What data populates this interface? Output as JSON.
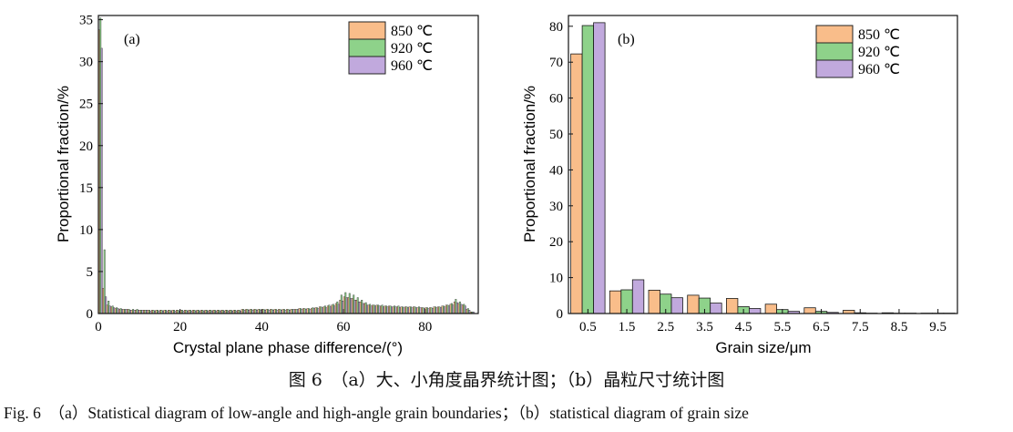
{
  "caption": {
    "cn": "图 6　（a）大、小角度晶界统计图；（b）晶粒尺寸统计图",
    "en": "Fig. 6　（a）Statistical diagram of low-angle and high-angle grain boundaries；（b）statistical diagram of grain size"
  },
  "chart_data": [
    {
      "type": "bar",
      "panel_label": "(a)",
      "xlabel": "Crystal plane phase difference/(°)",
      "ylabel": "Proportional fraction/%",
      "xlim": [
        0,
        93
      ],
      "ylim": [
        0,
        35.5
      ],
      "xticks": [
        0,
        20,
        40,
        60,
        80
      ],
      "yticks": [
        0,
        5,
        10,
        15,
        20,
        25,
        30,
        35
      ],
      "bin_width": 1,
      "x": [
        1,
        2,
        3,
        4,
        5,
        6,
        7,
        8,
        9,
        10,
        11,
        12,
        13,
        14,
        15,
        16,
        17,
        18,
        19,
        20,
        21,
        22,
        23,
        24,
        25,
        26,
        27,
        28,
        29,
        30,
        31,
        32,
        33,
        34,
        35,
        36,
        37,
        38,
        39,
        40,
        41,
        42,
        43,
        44,
        45,
        46,
        47,
        48,
        49,
        50,
        51,
        52,
        53,
        54,
        55,
        56,
        57,
        58,
        59,
        60,
        61,
        62,
        63,
        64,
        65,
        66,
        67,
        68,
        69,
        70,
        71,
        72,
        73,
        74,
        75,
        76,
        77,
        78,
        79,
        80,
        81,
        82,
        83,
        84,
        85,
        86,
        87,
        88,
        89,
        90,
        91,
        92
      ],
      "series": [
        {
          "name": "850 ℃",
          "color": "#F9BD8A",
          "values": [
            33.8,
            3.0,
            1.0,
            0.8,
            0.6,
            0.5,
            0.5,
            0.5,
            0.4,
            0.4,
            0.4,
            0.4,
            0.4,
            0.4,
            0.4,
            0.4,
            0.4,
            0.4,
            0.4,
            0.4,
            0.4,
            0.4,
            0.4,
            0.4,
            0.4,
            0.4,
            0.4,
            0.4,
            0.4,
            0.4,
            0.4,
            0.4,
            0.4,
            0.4,
            0.4,
            0.5,
            0.5,
            0.5,
            0.5,
            0.5,
            0.5,
            0.5,
            0.5,
            0.5,
            0.5,
            0.5,
            0.5,
            0.5,
            0.5,
            0.6,
            0.6,
            0.6,
            0.6,
            0.7,
            0.8,
            0.8,
            0.9,
            1.0,
            1.2,
            1.6,
            2.0,
            1.9,
            1.8,
            1.6,
            1.4,
            1.2,
            1.0,
            1.0,
            1.0,
            0.9,
            0.9,
            0.9,
            0.8,
            0.8,
            0.8,
            0.8,
            0.8,
            0.8,
            0.7,
            0.7,
            0.7,
            0.7,
            0.8,
            0.8,
            0.9,
            1.0,
            1.1,
            1.4,
            1.2,
            1.0,
            0.5,
            0.2
          ]
        },
        {
          "name": "920 ℃",
          "color": "#8ED28A",
          "values": [
            35.2,
            7.6,
            1.5,
            0.9,
            0.7,
            0.6,
            0.5,
            0.5,
            0.5,
            0.5,
            0.4,
            0.4,
            0.4,
            0.4,
            0.4,
            0.4,
            0.4,
            0.4,
            0.4,
            0.4,
            0.4,
            0.4,
            0.4,
            0.4,
            0.4,
            0.4,
            0.4,
            0.4,
            0.4,
            0.4,
            0.4,
            0.4,
            0.4,
            0.4,
            0.4,
            0.5,
            0.5,
            0.5,
            0.5,
            0.5,
            0.5,
            0.5,
            0.5,
            0.5,
            0.5,
            0.5,
            0.5,
            0.5,
            0.5,
            0.6,
            0.6,
            0.6,
            0.7,
            0.7,
            0.8,
            0.9,
            1.0,
            1.1,
            1.4,
            2.2,
            2.5,
            2.4,
            2.2,
            1.9,
            1.6,
            1.3,
            1.1,
            1.0,
            1.0,
            1.0,
            0.9,
            0.9,
            0.9,
            0.9,
            0.8,
            0.8,
            0.8,
            0.8,
            0.8,
            0.7,
            0.7,
            0.7,
            0.8,
            0.8,
            0.9,
            1.0,
            1.2,
            1.7,
            1.4,
            1.1,
            0.6,
            0.2
          ]
        },
        {
          "name": "960 ℃",
          "color": "#C1A9DD",
          "values": [
            31.6,
            2.0,
            0.9,
            0.7,
            0.6,
            0.5,
            0.5,
            0.4,
            0.4,
            0.4,
            0.4,
            0.4,
            0.3,
            0.3,
            0.3,
            0.3,
            0.3,
            0.3,
            0.3,
            0.3,
            0.3,
            0.3,
            0.3,
            0.3,
            0.3,
            0.3,
            0.3,
            0.3,
            0.3,
            0.3,
            0.3,
            0.3,
            0.3,
            0.3,
            0.3,
            0.4,
            0.4,
            0.4,
            0.4,
            0.4,
            0.4,
            0.4,
            0.4,
            0.4,
            0.4,
            0.4,
            0.4,
            0.5,
            0.5,
            0.5,
            0.5,
            0.5,
            0.6,
            0.6,
            0.7,
            0.7,
            0.8,
            0.9,
            1.1,
            1.5,
            1.9,
            1.8,
            1.6,
            1.4,
            1.2,
            1.0,
            0.9,
            0.9,
            0.9,
            0.8,
            0.8,
            0.8,
            0.8,
            0.7,
            0.7,
            0.7,
            0.7,
            0.7,
            0.7,
            0.6,
            0.6,
            0.6,
            0.7,
            0.7,
            0.8,
            0.9,
            1.0,
            1.3,
            1.1,
            0.9,
            0.4,
            0.2
          ]
        }
      ],
      "legend_position": "top-right"
    },
    {
      "type": "bar",
      "panel_label": "(b)",
      "xlabel": "Grain size/μm",
      "ylabel": "Proportional fraction/%",
      "categories": [
        "0.5",
        "1.5",
        "2.5",
        "3.5",
        "4.5",
        "5.5",
        "6.5",
        "7.5",
        "8.5",
        "9.5"
      ],
      "ylim": [
        0,
        83
      ],
      "yticks": [
        0,
        10,
        20,
        30,
        40,
        50,
        60,
        70,
        80
      ],
      "series": [
        {
          "name": "850 ℃",
          "color": "#F9BD8A",
          "values": [
            72.3,
            6.3,
            6.5,
            5.1,
            4.2,
            2.6,
            1.6,
            0.9,
            0.2,
            0.1
          ]
        },
        {
          "name": "920 ℃",
          "color": "#8ED28A",
          "values": [
            80.2,
            6.6,
            5.4,
            4.3,
            1.9,
            1.1,
            0.6,
            0.2,
            0.1,
            0.1
          ]
        },
        {
          "name": "960 ℃",
          "color": "#C1A9DD",
          "values": [
            81.0,
            9.4,
            4.4,
            2.9,
            1.4,
            0.6,
            0.3,
            0.1,
            0.1,
            0.1
          ]
        }
      ],
      "legend_position": "top-right"
    }
  ]
}
